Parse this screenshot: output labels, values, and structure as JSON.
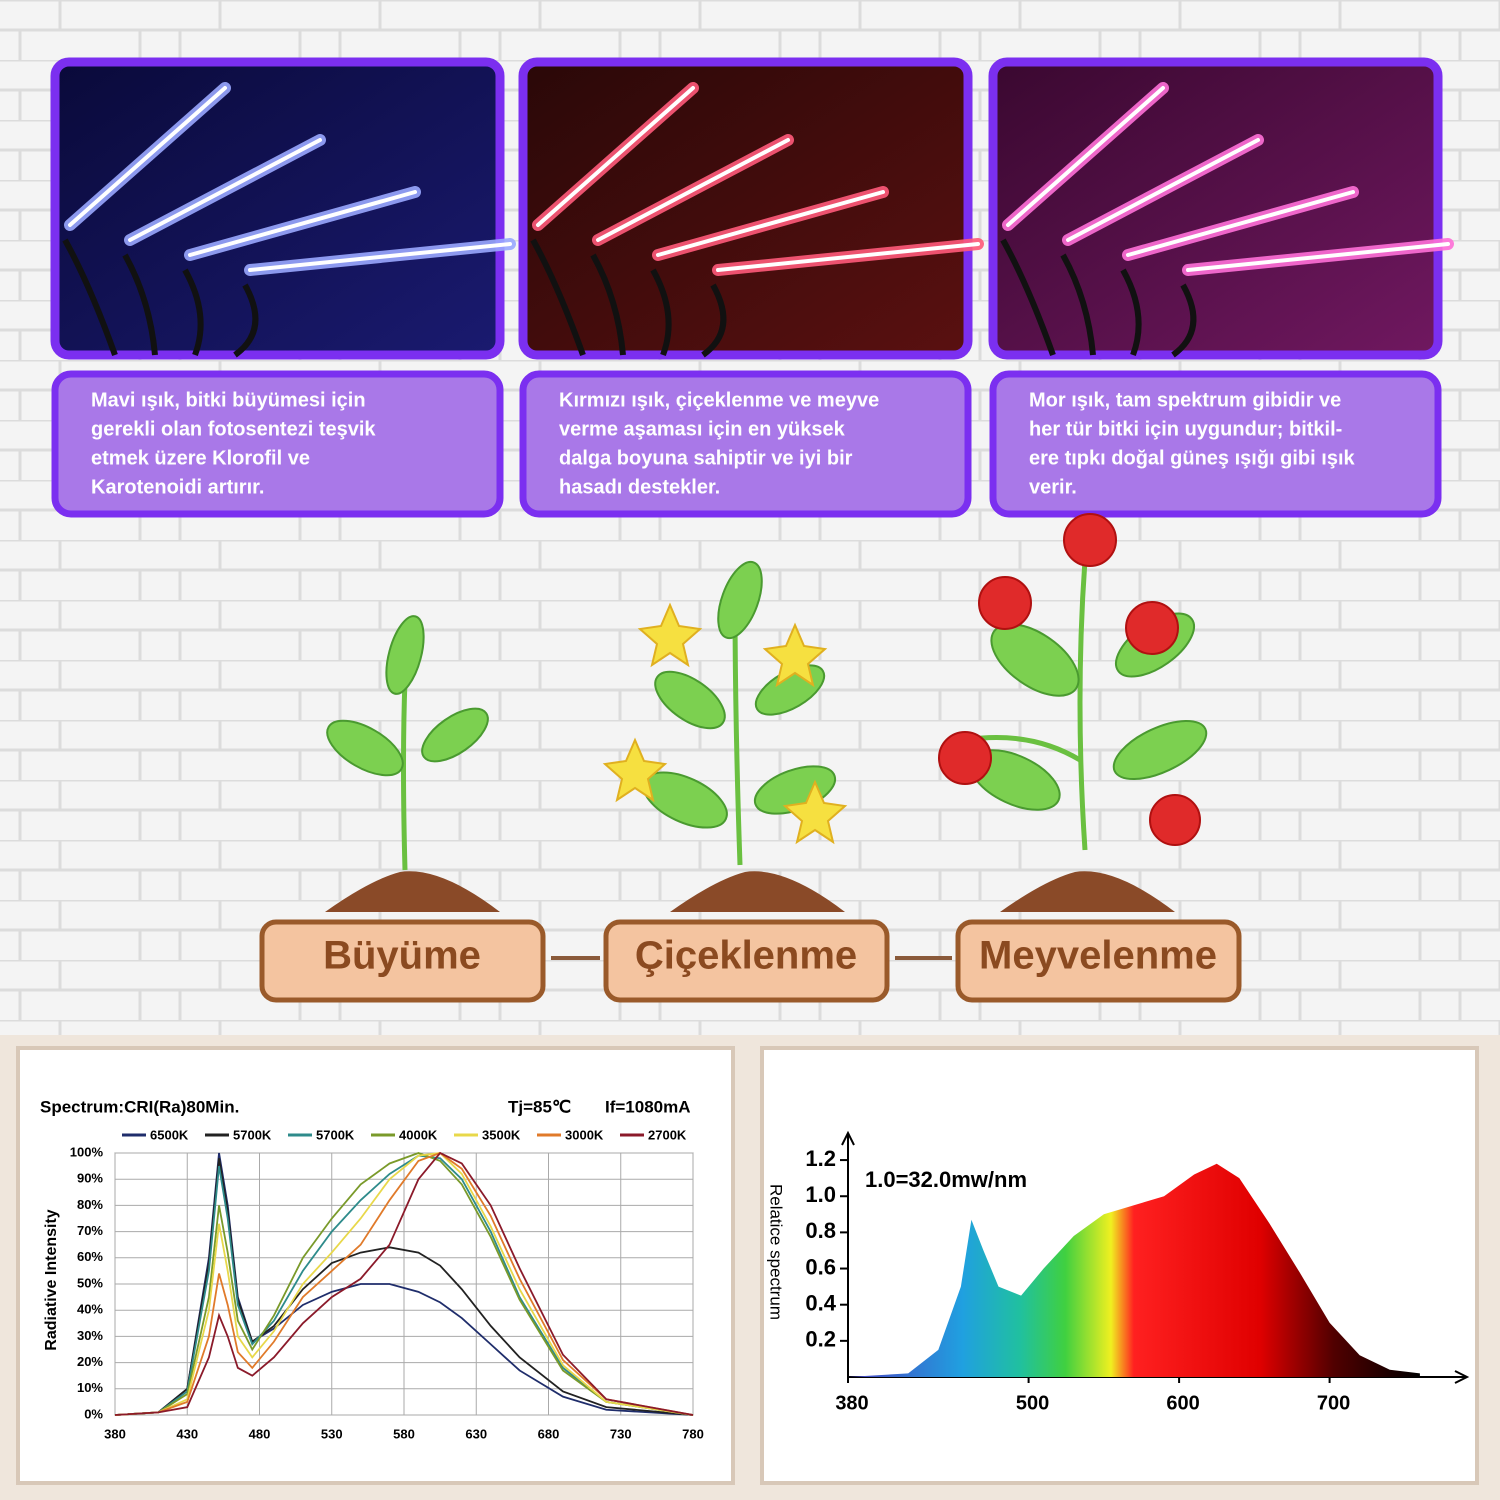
{
  "panels": [
    {
      "lines": [
        "Mavi ışık, bitki büyümesi için",
        "gerekli olan fotosentezi teşvik",
        "etmek üzere Klorofil ve",
        "Karotenoidi artırır."
      ]
    },
    {
      "lines": [
        "Kırmızı ışık, çiçeklenme ve meyve",
        "verme aşaması için en yüksek",
        "dalga boyuna sahiptir ve iyi bir",
        "hasadı destekler."
      ]
    },
    {
      "lines": [
        "Mor ışık, tam spektrum gibidir ve",
        "her tür bitki için uygundur; bitkil-",
        "ere tıpkı doğal güneş ışığı gibi ışık",
        "verir."
      ]
    }
  ],
  "stages": [
    "Büyüme",
    "Çiçeklenme",
    "Meyvelenme"
  ],
  "chart_data": [
    {
      "type": "line",
      "title": "Spectrum:CRI(Ra)80Min.",
      "annotations": [
        "Tj=85℃",
        "If=1080mA"
      ],
      "ylabel": "Radiative Intensity",
      "x": [
        380,
        410,
        430,
        445,
        452,
        458,
        465,
        475,
        490,
        510,
        530,
        550,
        570,
        590,
        605,
        620,
        640,
        660,
        690,
        720,
        780
      ],
      "series": [
        {
          "name": "6500K",
          "color": "#1f2d6b",
          "values": [
            0,
            1,
            10,
            60,
            100,
            80,
            45,
            28,
            33,
            42,
            47,
            50,
            50,
            47,
            43,
            37,
            27,
            17,
            7,
            2,
            0
          ]
        },
        {
          "name": "5700K",
          "color": "#222222",
          "values": [
            0,
            1,
            10,
            58,
            98,
            78,
            44,
            28,
            34,
            48,
            58,
            62,
            64,
            62,
            57,
            48,
            34,
            22,
            9,
            3,
            0
          ]
        },
        {
          "name": "5700K",
          "color": "#2e8b8b",
          "values": [
            0,
            1,
            9,
            55,
            95,
            75,
            42,
            27,
            36,
            55,
            70,
            82,
            92,
            99,
            98,
            90,
            70,
            45,
            18,
            5,
            0
          ]
        },
        {
          "name": "4000K",
          "color": "#7a9a2a",
          "values": [
            0,
            1,
            8,
            45,
            80,
            62,
            36,
            25,
            38,
            60,
            75,
            88,
            96,
            100,
            97,
            88,
            68,
            44,
            17,
            5,
            0
          ]
        },
        {
          "name": "3500K",
          "color": "#e8d84a",
          "values": [
            0,
            1,
            6,
            40,
            73,
            55,
            30,
            22,
            32,
            50,
            62,
            75,
            90,
            99,
            100,
            92,
            72,
            48,
            19,
            5,
            0
          ]
        },
        {
          "name": "3000K",
          "color": "#e07a2a",
          "values": [
            0,
            1,
            5,
            30,
            54,
            42,
            24,
            18,
            28,
            45,
            55,
            65,
            82,
            97,
            100,
            94,
            76,
            52,
            21,
            6,
            0
          ]
        },
        {
          "name": "2700K",
          "color": "#8b1a2a",
          "values": [
            0,
            1,
            3,
            22,
            38,
            30,
            18,
            15,
            22,
            35,
            45,
            52,
            65,
            90,
            100,
            96,
            80,
            56,
            23,
            6,
            0
          ]
        }
      ],
      "xlim": [
        380,
        780
      ],
      "xticks": [
        380,
        430,
        480,
        530,
        580,
        630,
        680,
        730,
        780
      ],
      "ylim": [
        0,
        100
      ],
      "yticks": [
        {
          "value": 0,
          "label": "0%"
        },
        {
          "value": 10,
          "label": "10%"
        },
        {
          "value": 20,
          "label": "20%"
        },
        {
          "value": 30,
          "label": "30%"
        },
        {
          "value": 40,
          "label": "40%"
        },
        {
          "value": 50,
          "label": "50%"
        },
        {
          "value": 60,
          "label": "60%"
        },
        {
          "value": 70,
          "label": "70%"
        },
        {
          "value": 80,
          "label": "80%"
        },
        {
          "value": 90,
          "label": "90%"
        },
        {
          "value": 100,
          "label": "100%"
        }
      ],
      "grid": true
    },
    {
      "type": "area",
      "title": "1.0=32.0mw/nm",
      "ylabel": "Relatice spectrum",
      "x": [
        380,
        420,
        440,
        455,
        462,
        470,
        480,
        495,
        510,
        530,
        550,
        570,
        590,
        610,
        625,
        640,
        660,
        680,
        700,
        720,
        740,
        760
      ],
      "values": [
        0,
        0.02,
        0.15,
        0.5,
        0.87,
        0.7,
        0.5,
        0.45,
        0.6,
        0.78,
        0.9,
        0.95,
        1.0,
        1.12,
        1.18,
        1.1,
        0.85,
        0.58,
        0.3,
        0.12,
        0.04,
        0.02
      ],
      "xlim": [
        380,
        780
      ],
      "xticks": [
        380,
        500,
        600,
        700
      ],
      "ylim": [
        0,
        1.3
      ],
      "yticks": [
        0.2,
        0.4,
        0.6,
        0.8,
        {
          "value": 1,
          "label": "1.0"
        },
        1.2
      ],
      "grid": false
    }
  ]
}
